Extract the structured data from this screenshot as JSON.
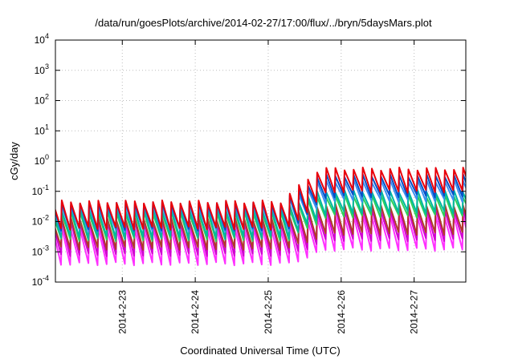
{
  "chart_data": {
    "type": "line",
    "title": "/data/run/goesPlots/archive/2014-02-27/17:00/flux/../bryn/5daysMars.plot",
    "xlabel": "Coordinated Universal Time (UTC)",
    "ylabel": "cGy/day",
    "y_scale": "log",
    "ylim": [
      0.0001,
      10000
    ],
    "y_ticks": [
      {
        "value": 0.0001,
        "base": "10",
        "exp": "-4"
      },
      {
        "value": 0.001,
        "base": "10",
        "exp": "-3"
      },
      {
        "value": 0.01,
        "base": "10",
        "exp": "-2"
      },
      {
        "value": 0.1,
        "base": "10",
        "exp": "-1"
      },
      {
        "value": 1,
        "base": "10",
        "exp": "0"
      },
      {
        "value": 10,
        "base": "10",
        "exp": "1"
      },
      {
        "value": 100,
        "base": "10",
        "exp": "2"
      },
      {
        "value": 1000,
        "base": "10",
        "exp": "3"
      },
      {
        "value": 10000,
        "base": "10",
        "exp": "4"
      }
    ],
    "xlim": [
      "2014-02-22 02:00",
      "2014-02-27 17:00"
    ],
    "x_ticks": [
      "2014-2-23",
      "2014-2-24",
      "2014-2-25",
      "2014-2-26",
      "2014-2-27"
    ],
    "x_tick_dates": [
      "2014-02-23 00:00",
      "2014-02-24 00:00",
      "2014-02-25 00:00",
      "2014-02-26 00:00",
      "2014-02-27 00:00"
    ],
    "grid": true,
    "legend": "none",
    "pattern": "sawtooth, ~3 hour period",
    "series": [
      {
        "color": "#e8000b",
        "quiet_peak": 0.045,
        "quiet_trough": 0.006,
        "elevated_peak": 0.55,
        "elevated_trough": 0.1
      },
      {
        "color": "#0050c8",
        "quiet_peak": 0.04,
        "quiet_trough": 0.0055,
        "elevated_peak": 0.33,
        "elevated_trough": 0.07
      },
      {
        "color": "#3b8ff0",
        "quiet_peak": 0.035,
        "quiet_trough": 0.005,
        "elevated_peak": 0.22,
        "elevated_trough": 0.05
      },
      {
        "color": "#00b8a0",
        "quiet_peak": 0.025,
        "quiet_trough": 0.003,
        "elevated_peak": 0.1,
        "elevated_trough": 0.02
      },
      {
        "color": "#2fd05a",
        "quiet_peak": 0.02,
        "quiet_trough": 0.0025,
        "elevated_peak": 0.07,
        "elevated_trough": 0.015
      },
      {
        "color": "#b03a2a",
        "quiet_peak": 0.012,
        "quiet_trough": 0.0013,
        "elevated_peak": 0.035,
        "elevated_trough": 0.004
      },
      {
        "color": "#d000d0",
        "quiet_peak": 0.01,
        "quiet_trough": 0.0008,
        "elevated_peak": 0.025,
        "elevated_trough": 0.0025
      },
      {
        "color": "#ff30ff",
        "quiet_peak": 0.006,
        "quiet_trough": 0.0004,
        "elevated_peak": 0.015,
        "elevated_trough": 0.0012
      }
    ],
    "elevation_start": "2014-02-25 04:00",
    "elevation_ramp_end": "2014-02-25 17:00",
    "period_hours": 3
  }
}
